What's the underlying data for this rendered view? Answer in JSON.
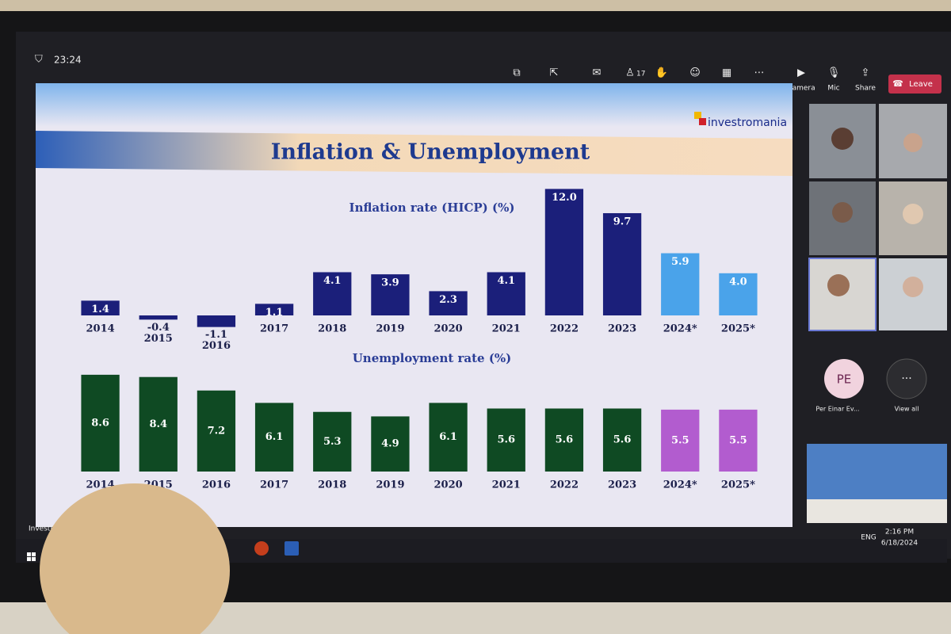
{
  "window": {
    "time": "23:24"
  },
  "toolbar": {
    "items": [
      "Take control",
      "Pop out",
      "Chat",
      "People",
      "Raise",
      "React",
      "View",
      "More",
      "Camera",
      "Mic",
      "Share"
    ],
    "people_count": 17,
    "leave": "Leave"
  },
  "slide": {
    "logo": "investromania",
    "title": "Inflation & Unemployment"
  },
  "chart_data": [
    {
      "type": "bar",
      "title": "Inflation rate (HICP) (%)",
      "categories": [
        "2014",
        "2015",
        "2016",
        "2017",
        "2018",
        "2019",
        "2020",
        "2021",
        "2022",
        "2023",
        "2024*",
        "2025*"
      ],
      "values": [
        1.4,
        -0.4,
        -1.1,
        1.1,
        4.1,
        3.9,
        2.3,
        4.1,
        12,
        9.7,
        5.9,
        4
      ],
      "value_labels": [
        "1.4",
        "-0.4",
        "-1.1",
        "1.1",
        "4.1",
        "3.9",
        "2.3",
        "4.1",
        "12.0",
        "9.7",
        "5.9",
        "4.0"
      ],
      "colors": [
        "#1b1f7a",
        "#1b1f7a",
        "#1b1f7a",
        "#1b1f7a",
        "#1b1f7a",
        "#1b1f7a",
        "#1b1f7a",
        "#1b1f7a",
        "#1b1f7a",
        "#1b1f7a",
        "#4aa3ea",
        "#4aa3ea"
      ]
    },
    {
      "type": "bar",
      "title": "Unemployment rate (%)",
      "categories": [
        "2014",
        "2015",
        "2016",
        "2017",
        "2018",
        "2019",
        "2020",
        "2021",
        "2022",
        "2023",
        "2024*",
        "2025*"
      ],
      "values": [
        8.6,
        8.4,
        7.2,
        6.1,
        5.3,
        4.9,
        6.1,
        5.6,
        5.6,
        5.6,
        5.5,
        5.5
      ],
      "colors": [
        "#0f4a23",
        "#0f4a23",
        "#0f4a23",
        "#0f4a23",
        "#0f4a23",
        "#0f4a23",
        "#0f4a23",
        "#0f4a23",
        "#0f4a23",
        "#0f4a23",
        "#b25ccf",
        "#b25ccf"
      ]
    }
  ],
  "participants": {
    "initials": "PE",
    "name": "Per Einar Ev...",
    "view_all": "View all"
  },
  "taskbar": {
    "app": "InvestRom",
    "language": "ENG",
    "time": "2:16 PM",
    "date": "6/18/2024"
  }
}
